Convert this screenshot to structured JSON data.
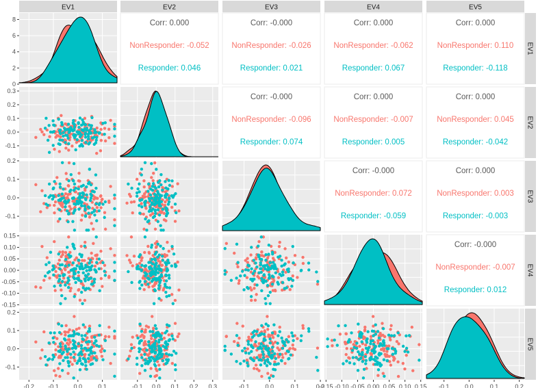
{
  "chart_data": {
    "type": "scatter-matrix",
    "variables": [
      "EV1",
      "EV2",
      "EV3",
      "EV4",
      "EV5"
    ],
    "groups": [
      {
        "name": "NonResponder",
        "color": "#F8766D"
      },
      {
        "name": "Responder",
        "color": "#00BFC4"
      }
    ],
    "ranges": [
      [
        -0.24,
        0.16
      ],
      [
        -0.19,
        0.33
      ],
      [
        -0.185,
        0.2
      ],
      [
        -0.155,
        0.155
      ],
      [
        -0.17,
        0.22
      ]
    ],
    "ticks": [
      {
        "values": [
          -0.2,
          -0.1,
          0.0,
          0.1
        ],
        "labels": [
          "-0.2",
          "-0.1",
          "0.0",
          "0.1"
        ]
      },
      {
        "values": [
          -0.1,
          0.0,
          0.1,
          0.2,
          0.3
        ],
        "labels": [
          "-0.1",
          "0.0",
          "0.1",
          "0.2",
          "0.3"
        ]
      },
      {
        "values": [
          -0.1,
          0.0,
          0.1,
          0.2
        ],
        "labels": [
          "-0.1",
          "0.0",
          "0.1",
          "0.2"
        ]
      },
      {
        "values": [
          -0.15,
          -0.1,
          -0.05,
          0.0,
          0.05,
          0.1,
          0.15
        ],
        "labels": [
          "-0.15",
          "-0.10",
          "-0.05",
          "0.00",
          "0.05",
          "0.10",
          "0.15"
        ]
      },
      {
        "values": [
          -0.1,
          0.0,
          0.1,
          0.2
        ],
        "labels": [
          "-0.1",
          "0.0",
          "0.1",
          "0.2"
        ]
      }
    ],
    "diag1_ylim": [
      0,
      8.8
    ],
    "diag1_yticks": [
      "0",
      "2",
      "4",
      "6",
      "8"
    ],
    "sd": [
      0.065,
      0.055,
      0.07,
      0.06,
      0.07
    ],
    "correlations": [
      {
        "row": 0,
        "col": 1,
        "corr": "Corr: 0.000",
        "non": "NonResponder: -0.052",
        "resp": "Responder: 0.046"
      },
      {
        "row": 0,
        "col": 2,
        "corr": "Corr: -0.000",
        "non": "NonResponder: -0.026",
        "resp": "Responder: 0.021"
      },
      {
        "row": 0,
        "col": 3,
        "corr": "Corr: 0.000",
        "non": "NonResponder: -0.062",
        "resp": "Responder: 0.067"
      },
      {
        "row": 0,
        "col": 4,
        "corr": "Corr: 0.000",
        "non": "NonResponder: 0.110",
        "resp": "Responder: -0.118"
      },
      {
        "row": 1,
        "col": 2,
        "corr": "Corr: -0.000",
        "non": "NonResponder: -0.096",
        "resp": "Responder: 0.074"
      },
      {
        "row": 1,
        "col": 3,
        "corr": "Corr: 0.000",
        "non": "NonResponder: -0.007",
        "resp": "Responder: 0.005"
      },
      {
        "row": 1,
        "col": 4,
        "corr": "Corr: 0.000",
        "non": "NonResponder: 0.045",
        "resp": "Responder: -0.042"
      },
      {
        "row": 2,
        "col": 3,
        "corr": "Corr: -0.000",
        "non": "NonResponder: 0.072",
        "resp": "Responder: -0.059"
      },
      {
        "row": 2,
        "col": 4,
        "corr": "Corr: 0.000",
        "non": "NonResponder: 0.003",
        "resp": "Responder: -0.003"
      },
      {
        "row": 3,
        "col": 4,
        "corr": "Corr: -0.000",
        "non": "NonResponder: -0.007",
        "resp": "Responder: 0.012"
      }
    ],
    "points_per_group": 120
  }
}
